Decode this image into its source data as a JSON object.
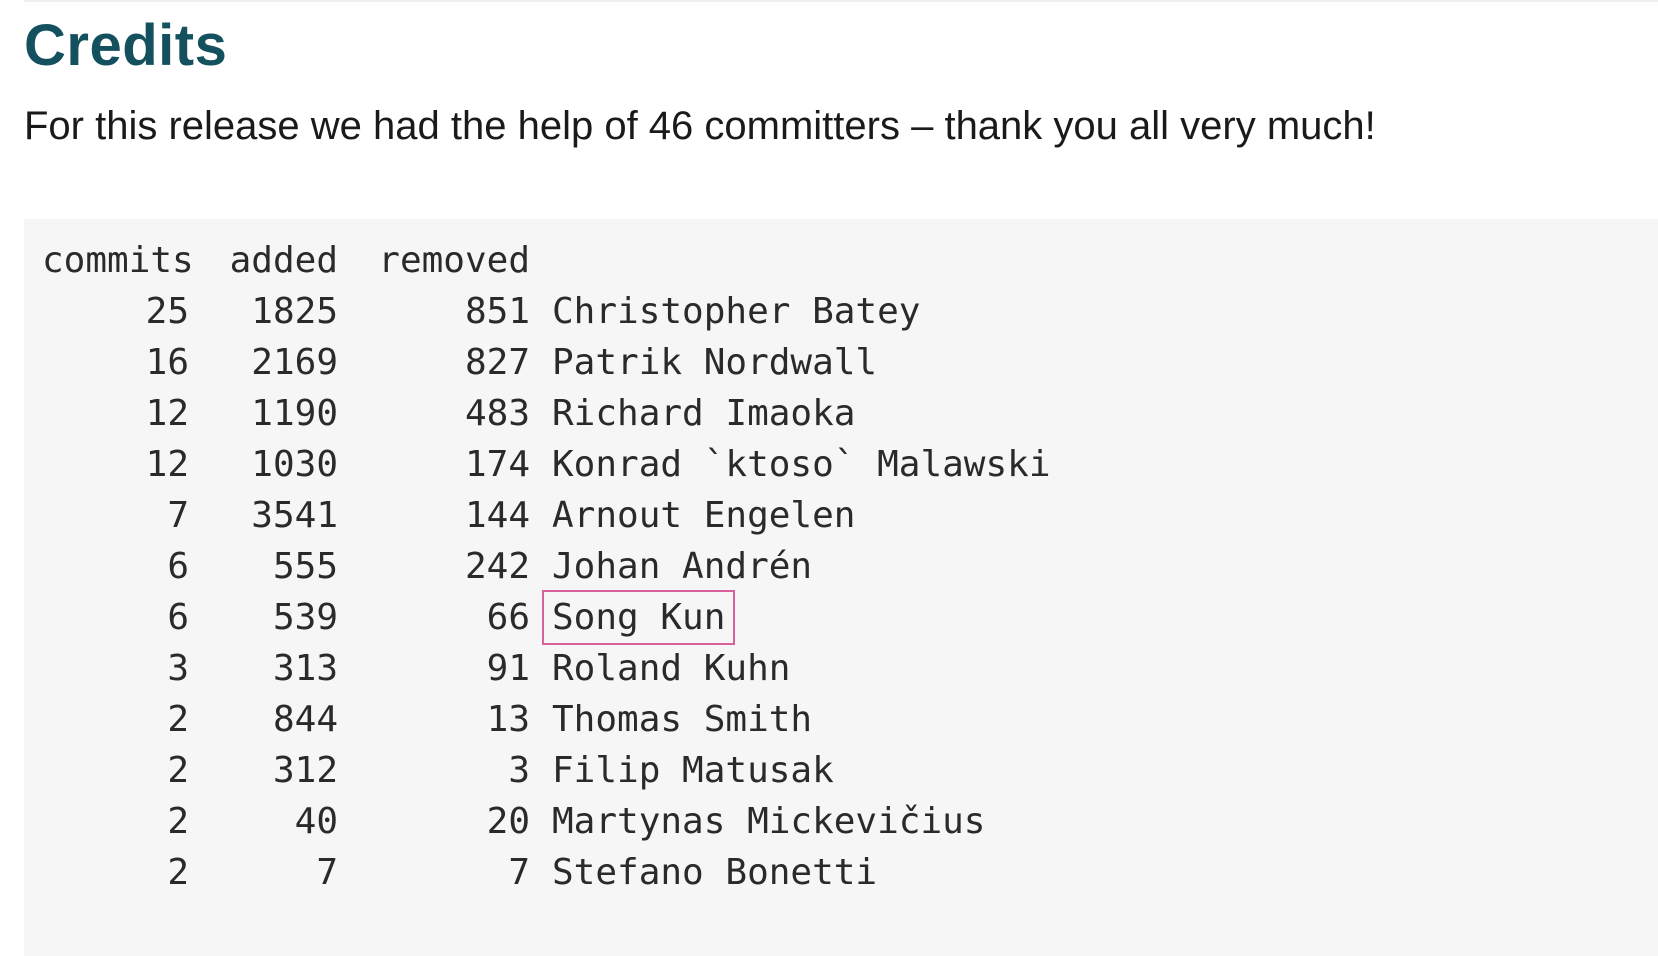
{
  "page": {
    "heading": "Credits",
    "intro": "For this release we had the help of 46 committers – thank you all very much!"
  },
  "table": {
    "headers": {
      "commits": "commits",
      "added": "added",
      "removed": "removed"
    },
    "rows": [
      {
        "commits": "25",
        "added": "1825",
        "removed": "851",
        "name": "Christopher Batey"
      },
      {
        "commits": "16",
        "added": "2169",
        "removed": "827",
        "name": "Patrik Nordwall"
      },
      {
        "commits": "12",
        "added": "1190",
        "removed": "483",
        "name": "Richard Imaoka"
      },
      {
        "commits": "12",
        "added": "1030",
        "removed": "174",
        "name": "Konrad `ktoso` Malawski"
      },
      {
        "commits": "7",
        "added": "3541",
        "removed": "144",
        "name": "Arnout Engelen"
      },
      {
        "commits": "6",
        "added": "555",
        "removed": "242",
        "name": "Johan Andrén"
      },
      {
        "commits": "6",
        "added": "539",
        "removed": "66",
        "name": "Song Kun"
      },
      {
        "commits": "3",
        "added": "313",
        "removed": "91",
        "name": "Roland Kuhn"
      },
      {
        "commits": "2",
        "added": "844",
        "removed": "13",
        "name": "Thomas Smith"
      },
      {
        "commits": "2",
        "added": "312",
        "removed": "3",
        "name": "Filip Matusak"
      },
      {
        "commits": "2",
        "added": "40",
        "removed": "20",
        "name": "Martynas Mickevičius"
      },
      {
        "commits": "2",
        "added": "7",
        "removed": "7",
        "name": "Stefano Bonetti"
      }
    ],
    "highlighted_row": 6
  },
  "colors": {
    "heading": "#15505f",
    "code_background": "#f6f6f6",
    "highlight_border": "#d9619b"
  }
}
